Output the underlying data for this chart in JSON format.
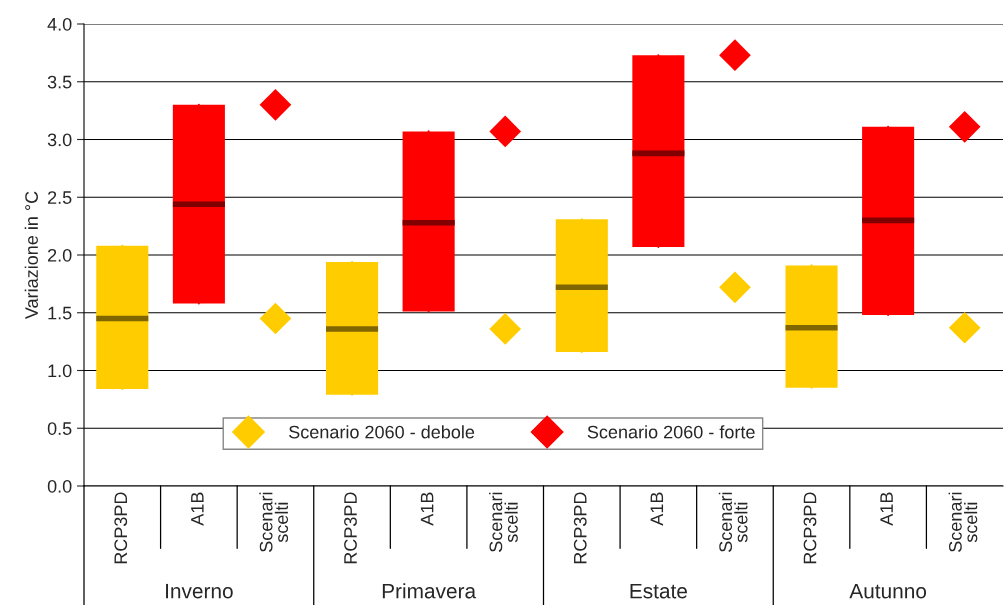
{
  "chart_data": {
    "type": "box",
    "ylabel": "Variazione in °C",
    "categories": [
      "RCP3PD",
      "A1B",
      "Scenari scelti",
      "RCP3PD",
      "A1B",
      "Scenari scelti",
      "RCP3PD",
      "A1B",
      "Scenari scelti",
      "RCP3PD",
      "A1B",
      "Scenari scelti"
    ],
    "annotations": [
      "Inverno",
      "Primavera",
      "Estate",
      "Autunno"
    ],
    "series": [
      {
        "color": "#ffcc00",
        "boxes": [
          {
            "low": 0.84,
            "q1": 0.84,
            "median": 1.45,
            "q3": 2.08,
            "high": 2.08
          },
          null,
          null,
          {
            "low": 0.79,
            "q1": 0.79,
            "median": 1.36,
            "q3": 1.94,
            "high": 1.94
          },
          null,
          null,
          {
            "low": 1.16,
            "q1": 1.16,
            "median": 1.72,
            "q3": 2.31,
            "high": 2.31
          },
          null,
          null,
          {
            "low": 0.85,
            "q1": 0.85,
            "median": 1.37,
            "q3": 1.91,
            "high": 1.91
          },
          null,
          null
        ]
      },
      {
        "color": "#ff0000",
        "boxes": [
          null,
          {
            "low": 1.58,
            "q1": 1.58,
            "median": 2.44,
            "q3": 3.3,
            "high": 3.3
          },
          null,
          null,
          {
            "low": 1.51,
            "q1": 1.51,
            "median": 2.28,
            "q3": 3.07,
            "high": 3.07
          },
          null,
          null,
          {
            "low": 2.07,
            "q1": 2.07,
            "median": 2.88,
            "q3": 3.73,
            "high": 3.73
          },
          null,
          null,
          {
            "low": 1.48,
            "q1": 1.48,
            "median": 2.3,
            "q3": 3.11,
            "high": 3.11
          },
          null
        ]
      },
      {
        "type": "scatter",
        "name": "Scenario 2060 - debole",
        "color": "#ffcc00",
        "marker": "diamond",
        "values": [
          null,
          null,
          1.45,
          null,
          null,
          1.36,
          null,
          null,
          1.72,
          null,
          null,
          1.37
        ]
      },
      {
        "type": "scatter",
        "name": "Scenario 2060 - forte",
        "color": "#ff0000",
        "marker": "diamond",
        "values": [
          null,
          null,
          3.3,
          null,
          null,
          3.07,
          null,
          null,
          3.73,
          null,
          null,
          3.11
        ]
      }
    ],
    "ylim": [
      0,
      4
    ],
    "yticks": [
      {
        "value": 0,
        "label": "0.0"
      },
      {
        "value": 0.5,
        "label": "0.5"
      },
      {
        "value": 1,
        "label": "1.0"
      },
      {
        "value": 1.5,
        "label": "1.5"
      },
      {
        "value": 2,
        "label": "2.0"
      },
      {
        "value": 2.5,
        "label": "2.5"
      },
      {
        "value": 3,
        "label": "3.0"
      },
      {
        "value": 3.5,
        "label": "3.5"
      },
      {
        "value": 4,
        "label": "4.0"
      }
    ],
    "grid": "y",
    "legend": "bottom"
  }
}
